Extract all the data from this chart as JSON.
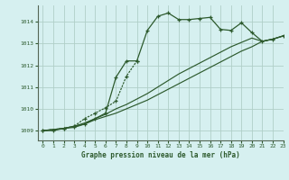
{
  "title": "Graphe pression niveau de la mer (hPa)",
  "bg_color": "#d6f0f0",
  "grid_color": "#b0cfc8",
  "line_color": "#2d5a2d",
  "xlim": [
    -0.5,
    23
  ],
  "ylim": [
    1008.55,
    1014.75
  ],
  "yticks": [
    1009,
    1010,
    1011,
    1012,
    1013,
    1014
  ],
  "xticks": [
    0,
    1,
    2,
    3,
    4,
    5,
    6,
    7,
    8,
    9,
    10,
    11,
    12,
    13,
    14,
    15,
    16,
    17,
    18,
    19,
    20,
    21,
    22,
    23
  ],
  "series_main": {
    "x": [
      0,
      1,
      2,
      3,
      4,
      5,
      6,
      7,
      8,
      9,
      10,
      11,
      12,
      13,
      14,
      15,
      16,
      17,
      18,
      19,
      20,
      21,
      22,
      23
    ],
    "y": [
      1009.0,
      1009.0,
      1009.1,
      1009.15,
      1009.3,
      1009.55,
      1009.8,
      1011.45,
      1012.2,
      1012.2,
      1013.6,
      1014.25,
      1014.4,
      1014.1,
      1014.1,
      1014.15,
      1014.2,
      1013.65,
      1013.6,
      1013.95,
      1013.5,
      1013.1,
      1013.2,
      1013.35
    ]
  },
  "series_line1": {
    "x": [
      0,
      1,
      2,
      3,
      4,
      5,
      6,
      7,
      8,
      9,
      10,
      11,
      12,
      13,
      14,
      15,
      16,
      17,
      18,
      19,
      20,
      21,
      22,
      23
    ],
    "y": [
      1009.0,
      1009.05,
      1009.1,
      1009.2,
      1009.35,
      1009.55,
      1009.75,
      1010.0,
      1010.2,
      1010.45,
      1010.7,
      1011.0,
      1011.3,
      1011.6,
      1011.85,
      1012.1,
      1012.35,
      1012.6,
      1012.85,
      1013.05,
      1013.25,
      1013.1,
      1013.2,
      1013.35
    ]
  },
  "series_line2": {
    "x": [
      0,
      1,
      2,
      3,
      4,
      5,
      6,
      7,
      8,
      9,
      10,
      11,
      12,
      13,
      14,
      15,
      16,
      17,
      18,
      19,
      20,
      21,
      22,
      23
    ],
    "y": [
      1009.0,
      1009.05,
      1009.1,
      1009.2,
      1009.3,
      1009.5,
      1009.65,
      1009.8,
      1010.0,
      1010.2,
      1010.4,
      1010.65,
      1010.9,
      1011.15,
      1011.4,
      1011.65,
      1011.9,
      1012.15,
      1012.4,
      1012.65,
      1012.85,
      1013.1,
      1013.2,
      1013.35
    ]
  },
  "series_dotted": {
    "x": [
      0,
      2,
      3,
      4,
      5,
      6,
      7,
      8,
      9
    ],
    "y": [
      1009.0,
      1009.1,
      1009.2,
      1009.55,
      1009.8,
      1010.05,
      1010.35,
      1011.5,
      1012.2
    ]
  }
}
